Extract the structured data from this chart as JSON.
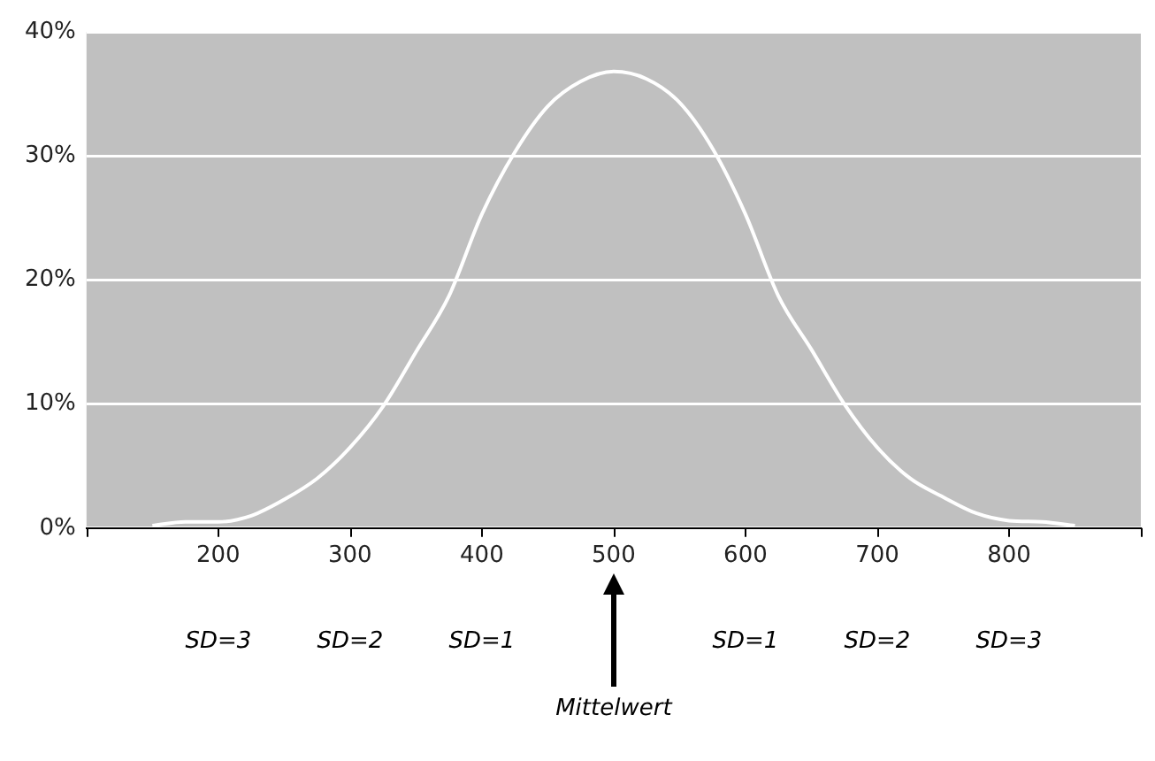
{
  "chart_data": {
    "type": "line",
    "x": [
      150,
      175,
      200,
      225,
      250,
      275,
      300,
      325,
      350,
      375,
      400,
      425,
      450,
      475,
      500,
      525,
      550,
      575,
      600,
      625,
      650,
      675,
      700,
      725,
      750,
      775,
      800,
      825,
      850
    ],
    "series": [
      {
        "color": "#ffffff",
        "values": [
          0.2,
          0.5,
          0.5,
          1.0,
          2.3,
          4.0,
          6.5,
          9.8,
          14.2,
          18.7,
          25.3,
          30.3,
          34.0,
          36.0,
          36.8,
          36.2,
          34.3,
          30.6,
          25.3,
          18.7,
          14.4,
          10.0,
          6.5,
          4.0,
          2.5,
          1.2,
          0.6,
          0.5,
          0.2
        ]
      }
    ],
    "xlim": [
      100,
      900
    ],
    "xticks": [
      {
        "value": 100,
        "label": null
      },
      200,
      300,
      400,
      500,
      600,
      700,
      800,
      {
        "value": 900,
        "label": null
      }
    ],
    "ylim": [
      0,
      40
    ],
    "yticks": [
      {
        "value": 0,
        "label": "0%"
      },
      {
        "value": 10,
        "label": "10%"
      },
      {
        "value": 20,
        "label": "20%"
      },
      {
        "value": 30,
        "label": "30%"
      },
      {
        "value": 40,
        "label": "40%"
      }
    ],
    "grid": "y",
    "marker": "none",
    "line_style": "solid",
    "legend": false,
    "annotations": [
      "SD=3",
      "SD=2",
      "SD=1",
      "SD=1",
      "SD=2",
      "SD=3",
      "Mittelwert"
    ]
  }
}
